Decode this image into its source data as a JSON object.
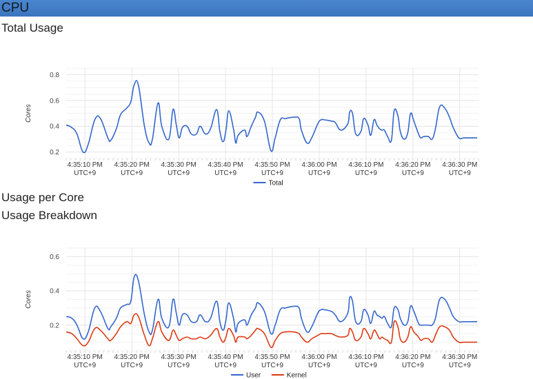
{
  "header": {
    "title": "CPU"
  },
  "sections": {
    "total_usage": "Total Usage",
    "usage_per_core": "Usage per Core",
    "usage_breakdown": "Usage Breakdown"
  },
  "colors": {
    "user": "#3366cc",
    "kernel": "#dc3912",
    "grid": "#e6e6e6",
    "header": "#3a74bd"
  },
  "chart_data": [
    {
      "type": "line",
      "title": "Total Usage",
      "ylabel": "Cores",
      "ylim": [
        0.15,
        0.85
      ],
      "yticks": [
        "0.2",
        "0.4",
        "0.6",
        "0.8"
      ],
      "ytick_values": [
        0.2,
        0.4,
        0.6,
        0.8
      ],
      "xticks": [
        [
          "4:35:10 PM",
          "UTC+9"
        ],
        [
          "4:35:20 PM",
          "UTC+9"
        ],
        [
          "4:35:30 PM",
          "UTC+9"
        ],
        [
          "4:35:40 PM",
          "UTC+9"
        ],
        [
          "4:35:50 PM",
          "UTC+9"
        ],
        [
          "4:36:00 PM",
          "UTC+9"
        ],
        [
          "4:36:10 PM",
          "UTC+9"
        ],
        [
          "4:36:20 PM",
          "UTC+9"
        ],
        [
          "4:36:30 PM",
          "UTC+9"
        ]
      ],
      "xtick_seconds": [
        10,
        20,
        30,
        40,
        50,
        60,
        70,
        80,
        90
      ],
      "xlim": [
        6,
        94
      ],
      "legend_position": "bottom",
      "series": [
        {
          "name": "Total",
          "x": [
            6.0,
            7.2,
            8.3,
            9.6,
            10.7,
            12.1,
            13.3,
            14.9,
            15.5,
            16.7,
            17.6,
            18.9,
            19.8,
            20.5,
            21.4,
            22.7,
            23.7,
            24.4,
            25.6,
            26.4,
            27.9,
            28.8,
            29.5,
            30.1,
            30.8,
            31.8,
            32.7,
            33.8,
            34.6,
            35.7,
            36.8,
            38.1,
            38.8,
            39.5,
            40.1,
            40.7,
            41.7,
            42.2,
            42.7,
            44.1,
            44.6,
            45.5,
            46.4,
            46.9,
            48.3,
            49.7,
            50.6,
            51.7,
            52.8,
            54.6,
            55.7,
            56.2,
            57.4,
            58.4,
            59.7,
            60.4,
            61.1,
            62.6,
            63.4,
            64.6,
            66.1,
            66.5,
            67.1,
            67.8,
            68.9,
            69.5,
            70.4,
            71.0,
            71.7,
            72.3,
            72.9,
            73.4,
            73.9,
            74.6,
            75.4,
            76.0,
            76.8,
            77.3,
            78.1,
            78.9,
            79.5,
            80.2,
            81.2,
            81.7,
            82.3,
            83.3,
            84.1,
            84.8,
            85.7,
            86.8,
            87.8,
            88.6,
            89.8,
            90.8,
            91.8,
            92.6,
            93.7
          ],
          "y": [
            0.41,
            0.39,
            0.34,
            0.2,
            0.26,
            0.45,
            0.46,
            0.31,
            0.29,
            0.38,
            0.49,
            0.54,
            0.59,
            0.72,
            0.72,
            0.4,
            0.27,
            0.3,
            0.58,
            0.4,
            0.3,
            0.53,
            0.41,
            0.31,
            0.39,
            0.4,
            0.34,
            0.34,
            0.4,
            0.34,
            0.38,
            0.53,
            0.36,
            0.28,
            0.37,
            0.52,
            0.38,
            0.27,
            0.33,
            0.37,
            0.32,
            0.4,
            0.47,
            0.51,
            0.44,
            0.21,
            0.31,
            0.45,
            0.46,
            0.47,
            0.46,
            0.37,
            0.27,
            0.31,
            0.42,
            0.45,
            0.45,
            0.44,
            0.43,
            0.37,
            0.42,
            0.51,
            0.5,
            0.34,
            0.36,
            0.46,
            0.41,
            0.33,
            0.45,
            0.41,
            0.38,
            0.37,
            0.37,
            0.32,
            0.29,
            0.52,
            0.48,
            0.36,
            0.3,
            0.35,
            0.5,
            0.44,
            0.34,
            0.31,
            0.32,
            0.32,
            0.3,
            0.38,
            0.55,
            0.54,
            0.47,
            0.39,
            0.31,
            0.31,
            0.31,
            0.31,
            0.31
          ],
          "color": "#3366cc"
        }
      ]
    },
    {
      "type": "line",
      "title": "Usage Breakdown",
      "ylabel": "Cores",
      "ylim": [
        0.05,
        0.65
      ],
      "yticks": [
        "0.2",
        "0.4",
        "0.6"
      ],
      "ytick_values": [
        0.2,
        0.4,
        0.6
      ],
      "xticks": [
        [
          "4:35:10 PM",
          "UTC+9"
        ],
        [
          "4:35:20 PM",
          "UTC+9"
        ],
        [
          "4:35:30 PM",
          "UTC+9"
        ],
        [
          "4:35:40 PM",
          "UTC+9"
        ],
        [
          "4:35:50 PM",
          "UTC+9"
        ],
        [
          "4:36:00 PM",
          "UTC+9"
        ],
        [
          "4:36:10 PM",
          "UTC+9"
        ],
        [
          "4:36:20 PM",
          "UTC+9"
        ],
        [
          "4:36:30 PM",
          "UTC+9"
        ]
      ],
      "xtick_seconds": [
        10,
        20,
        30,
        40,
        50,
        60,
        70,
        80,
        90
      ],
      "xlim": [
        6,
        94
      ],
      "legend_position": "bottom",
      "series": [
        {
          "name": "User",
          "x": [
            6.0,
            7.2,
            8.3,
            9.6,
            10.7,
            12.1,
            13.3,
            14.9,
            15.5,
            16.7,
            17.6,
            18.9,
            19.8,
            20.5,
            21.4,
            22.7,
            23.7,
            24.4,
            25.6,
            26.4,
            27.9,
            28.8,
            29.5,
            30.1,
            30.8,
            31.8,
            32.7,
            33.8,
            34.6,
            35.7,
            36.8,
            38.1,
            38.8,
            39.5,
            40.1,
            40.7,
            41.7,
            42.2,
            42.7,
            44.1,
            44.6,
            45.5,
            46.4,
            46.9,
            48.3,
            49.7,
            50.6,
            51.7,
            52.8,
            54.6,
            55.7,
            56.2,
            57.4,
            58.4,
            59.7,
            60.4,
            61.1,
            62.6,
            63.4,
            64.6,
            66.1,
            66.5,
            67.1,
            67.8,
            68.9,
            69.5,
            70.4,
            71.0,
            71.7,
            72.3,
            72.9,
            73.4,
            73.9,
            74.6,
            75.4,
            76.0,
            76.8,
            77.3,
            78.1,
            78.9,
            79.5,
            80.2,
            81.2,
            81.7,
            82.3,
            83.3,
            84.1,
            84.8,
            85.7,
            86.8,
            87.8,
            88.6,
            89.8,
            90.8,
            91.8,
            92.6,
            93.7
          ],
          "y": [
            0.25,
            0.24,
            0.2,
            0.12,
            0.16,
            0.3,
            0.28,
            0.18,
            0.19,
            0.24,
            0.3,
            0.32,
            0.34,
            0.48,
            0.46,
            0.26,
            0.16,
            0.17,
            0.35,
            0.24,
            0.19,
            0.35,
            0.27,
            0.2,
            0.26,
            0.26,
            0.22,
            0.22,
            0.26,
            0.22,
            0.24,
            0.34,
            0.22,
            0.17,
            0.23,
            0.33,
            0.24,
            0.16,
            0.21,
            0.23,
            0.2,
            0.26,
            0.3,
            0.33,
            0.28,
            0.15,
            0.2,
            0.29,
            0.3,
            0.31,
            0.3,
            0.24,
            0.16,
            0.19,
            0.27,
            0.29,
            0.29,
            0.28,
            0.26,
            0.22,
            0.27,
            0.36,
            0.34,
            0.22,
            0.22,
            0.29,
            0.26,
            0.21,
            0.28,
            0.26,
            0.25,
            0.24,
            0.25,
            0.21,
            0.19,
            0.3,
            0.29,
            0.24,
            0.2,
            0.22,
            0.31,
            0.28,
            0.21,
            0.2,
            0.2,
            0.2,
            0.2,
            0.24,
            0.35,
            0.35,
            0.3,
            0.25,
            0.22,
            0.22,
            0.22,
            0.22,
            0.22
          ],
          "color": "#3366cc"
        },
        {
          "name": "Kernel",
          "x": [
            6.0,
            7.2,
            8.3,
            9.6,
            10.7,
            12.1,
            13.3,
            14.9,
            15.5,
            16.7,
            17.6,
            18.9,
            19.8,
            20.5,
            21.4,
            22.7,
            23.7,
            24.4,
            25.6,
            26.4,
            27.9,
            28.8,
            29.5,
            30.1,
            30.8,
            31.8,
            32.7,
            33.8,
            34.6,
            35.7,
            36.8,
            38.1,
            38.8,
            39.5,
            40.1,
            40.7,
            41.7,
            42.2,
            42.7,
            44.1,
            44.6,
            45.5,
            46.4,
            46.9,
            48.3,
            49.7,
            50.6,
            51.7,
            52.8,
            54.6,
            55.7,
            56.2,
            57.4,
            58.4,
            59.7,
            60.4,
            61.1,
            62.6,
            63.4,
            64.6,
            66.1,
            66.5,
            67.1,
            67.8,
            68.9,
            69.5,
            70.4,
            71.0,
            71.7,
            72.3,
            72.9,
            73.4,
            73.9,
            74.6,
            75.4,
            76.0,
            76.8,
            77.3,
            78.1,
            78.9,
            79.5,
            80.2,
            81.2,
            81.7,
            82.3,
            83.3,
            84.1,
            84.8,
            85.7,
            86.8,
            87.8,
            88.6,
            89.8,
            90.8,
            91.8,
            92.6,
            93.7
          ],
          "y": [
            0.16,
            0.15,
            0.12,
            0.08,
            0.1,
            0.18,
            0.17,
            0.12,
            0.11,
            0.15,
            0.19,
            0.22,
            0.21,
            0.26,
            0.25,
            0.14,
            0.08,
            0.12,
            0.22,
            0.16,
            0.11,
            0.17,
            0.14,
            0.11,
            0.12,
            0.13,
            0.12,
            0.12,
            0.13,
            0.12,
            0.14,
            0.18,
            0.13,
            0.1,
            0.13,
            0.18,
            0.14,
            0.1,
            0.13,
            0.13,
            0.12,
            0.14,
            0.17,
            0.18,
            0.15,
            0.07,
            0.11,
            0.15,
            0.16,
            0.16,
            0.15,
            0.13,
            0.1,
            0.12,
            0.14,
            0.15,
            0.15,
            0.15,
            0.14,
            0.13,
            0.14,
            0.18,
            0.16,
            0.11,
            0.13,
            0.18,
            0.15,
            0.12,
            0.17,
            0.15,
            0.12,
            0.13,
            0.12,
            0.11,
            0.1,
            0.22,
            0.19,
            0.12,
            0.1,
            0.13,
            0.19,
            0.16,
            0.13,
            0.11,
            0.12,
            0.12,
            0.1,
            0.14,
            0.19,
            0.19,
            0.17,
            0.13,
            0.1,
            0.1,
            0.1,
            0.1,
            0.1
          ],
          "color": "#dc3912"
        }
      ]
    }
  ]
}
